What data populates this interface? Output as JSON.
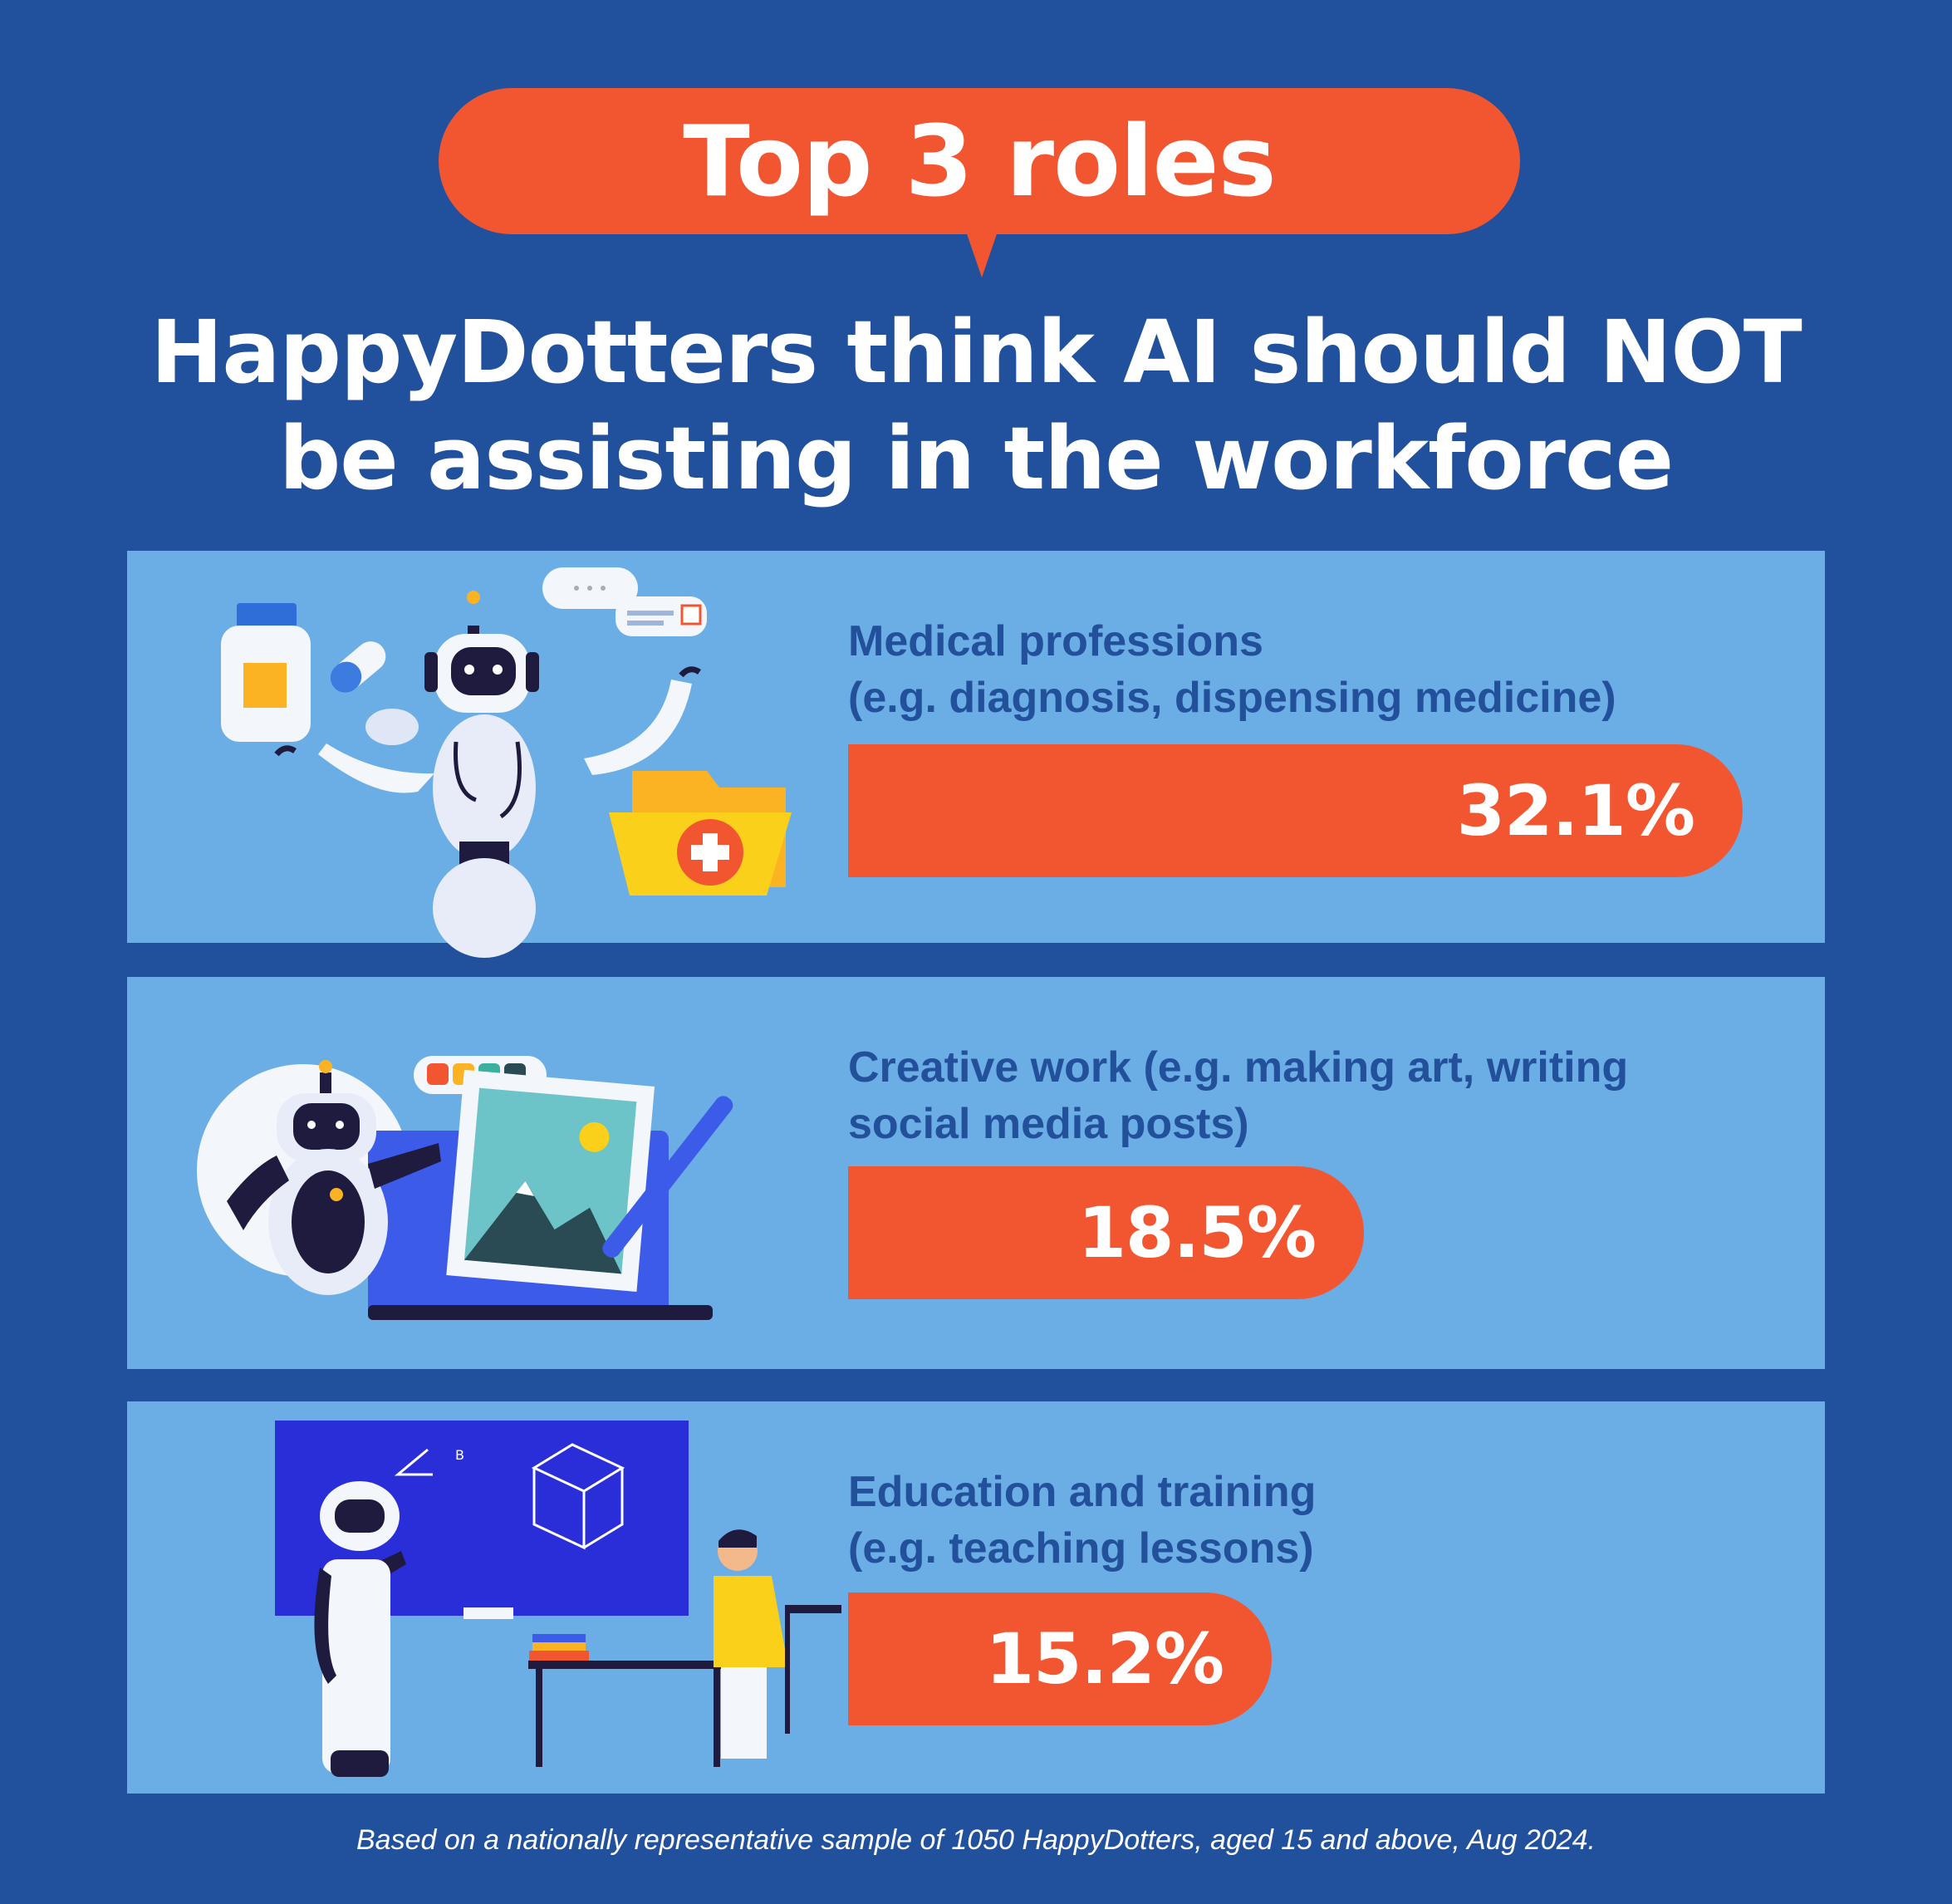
{
  "header": {
    "badge": "Top 3 roles",
    "headline_line1": "HappyDotters think AI should NOT",
    "headline_line2": "be assisting in the workforce"
  },
  "chart_data": {
    "type": "bar",
    "orientation": "horizontal",
    "categories": [
      "Medical professions (e.g. diagnosis, dispensing medicine)",
      "Creative work (e.g. making art, writing social media posts)",
      "Education and training (e.g. teaching lessons)"
    ],
    "values": [
      32.1,
      18.5,
      15.2
    ],
    "value_labels": [
      "32.1%",
      "18.5%",
      "15.2%"
    ],
    "unit": "%",
    "grid": false
  },
  "rows": [
    {
      "label_line1": "Medical professions",
      "label_line2": "(e.g. diagnosis, dispensing medicine)",
      "value_label": "32.1%"
    },
    {
      "label_line1": "Creative work (e.g. making art, writing",
      "label_line2": "social media posts)",
      "value_label": "18.5%"
    },
    {
      "label_line1": "Education and training",
      "label_line2": "(e.g. teaching lessons)",
      "value_label": "15.2%"
    }
  ],
  "footer": {
    "note": "Based on a nationally representative sample of 1050 HappyDotters, aged 15 and above, Aug 2024."
  },
  "colors": {
    "background": "#21519c",
    "panel": "#6baee6",
    "accent": "#f15631",
    "label_text": "#22509a"
  },
  "icons": [
    "medical-robot-illustration",
    "creative-robot-illustration",
    "teacher-robot-illustration"
  ]
}
